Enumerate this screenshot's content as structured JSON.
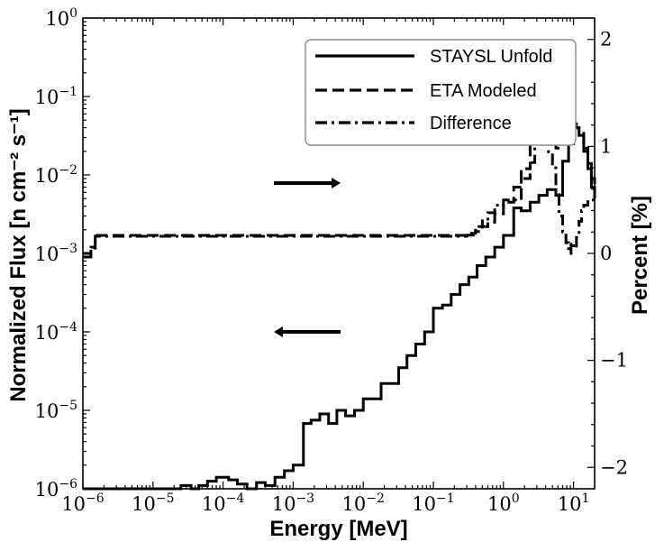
{
  "chart_data": {
    "type": "line",
    "xlabel": "Energy [MeV]",
    "ylabel": "Normalized Flux [n cm⁻² s⁻¹]",
    "ylabel_right": "Percent [%]",
    "xscale": "log",
    "yscale": "log",
    "xlim": [
      1e-06,
      20
    ],
    "ylim": [
      1e-06,
      1
    ],
    "ylim_right": [
      -2.2,
      2.2
    ],
    "x_ticks": [
      {
        "base": "10",
        "exp": "−6",
        "value": 1e-06
      },
      {
        "base": "10",
        "exp": "−5",
        "value": 1e-05
      },
      {
        "base": "10",
        "exp": "−4",
        "value": 0.0001
      },
      {
        "base": "10",
        "exp": "−3",
        "value": 0.001
      },
      {
        "base": "10",
        "exp": "−2",
        "value": 0.01
      },
      {
        "base": "10",
        "exp": "−1",
        "value": 0.1
      },
      {
        "base": "10",
        "exp": "0",
        "value": 1
      },
      {
        "base": "10",
        "exp": "1",
        "value": 10
      }
    ],
    "y_ticks": [
      {
        "base": "10",
        "exp": "−6",
        "value": 1e-06
      },
      {
        "base": "10",
        "exp": "−5",
        "value": 1e-05
      },
      {
        "base": "10",
        "exp": "−4",
        "value": 0.0001
      },
      {
        "base": "10",
        "exp": "−3",
        "value": 0.001
      },
      {
        "base": "10",
        "exp": "−2",
        "value": 0.01
      },
      {
        "base": "10",
        "exp": "−1",
        "value": 0.1
      },
      {
        "base": "10",
        "exp": "0",
        "value": 1
      }
    ],
    "y_right_ticks": [
      {
        "label": "−2",
        "value": -2
      },
      {
        "label": "−1",
        "value": -1
      },
      {
        "label": "0",
        "value": 0
      },
      {
        "label": "1",
        "value": 1
      },
      {
        "label": "2",
        "value": 2
      }
    ],
    "legend_position": "top-right",
    "series": [
      {
        "name": "STAYSL Unfold",
        "style": "solid",
        "axis": "left",
        "x": [
          1e-06,
          2.5e-05,
          3.5e-05,
          4.5e-05,
          6e-05,
          8e-05,
          0.00012,
          0.00016,
          0.00022,
          0.0003,
          0.0004,
          0.00055,
          0.00075,
          0.001,
          0.0014,
          0.0018,
          0.0024,
          0.0032,
          0.0042,
          0.0056,
          0.0075,
          0.01,
          0.0135,
          0.018,
          0.024,
          0.032,
          0.042,
          0.056,
          0.075,
          0.1,
          0.135,
          0.18,
          0.24,
          0.32,
          0.42,
          0.56,
          0.75,
          1,
          1.4,
          1.8,
          2.4,
          3.2,
          4.2,
          5.6,
          7,
          8.5,
          10,
          12,
          14,
          16,
          18,
          20
        ],
        "y": [
          1e-06,
          1.1e-06,
          1e-06,
          1.1e-06,
          1.25e-06,
          1.4e-06,
          1.3e-06,
          1.15e-06,
          1e-06,
          1.2e-06,
          1.1e-06,
          1.4e-06,
          1.7e-06,
          2e-06,
          6.8e-06,
          7.5e-06,
          9e-06,
          6.8e-06,
          1e-05,
          8.5e-06,
          1e-05,
          1.4e-05,
          1.4e-05,
          2.2e-05,
          2.2e-05,
          3.5e-05,
          5e-05,
          7e-05,
          0.0001,
          0.0002,
          0.00022,
          0.0003,
          0.0004,
          0.0005,
          0.0007,
          0.0009,
          0.0012,
          0.0017,
          0.0038,
          0.0035,
          0.0045,
          0.0055,
          0.0065,
          0.0055,
          0.015,
          0.025,
          0.04,
          0.032,
          0.02,
          0.012,
          0.007,
          0.005
        ]
      },
      {
        "name": "ETA Modeled",
        "style": "dashed",
        "axis": "left",
        "x": [
          1e-06,
          1.3e-06,
          1.5e-06,
          0.2,
          0.3,
          0.4,
          0.5,
          0.6,
          0.75,
          1,
          1.4,
          1.8,
          2.4,
          3,
          3.6,
          4.2,
          5,
          5.6,
          6.4,
          7.2,
          8,
          9,
          10,
          11,
          12,
          14,
          16,
          18,
          20
        ],
        "y": [
          0.0009,
          0.0012,
          0.0017,
          0.0017,
          0.0018,
          0.0019,
          0.0022,
          0.0025,
          0.0032,
          0.0045,
          0.007,
          0.012,
          0.025,
          0.032,
          0.03,
          0.028,
          0.026,
          0.022,
          0.025,
          0.03,
          0.036,
          0.042,
          0.045,
          0.04,
          0.034,
          0.022,
          0.014,
          0.009,
          0.006
        ]
      },
      {
        "name": "Difference",
        "style": "dashdot",
        "axis": "right",
        "x": [
          1e-06,
          1.3e-06,
          1.5e-06,
          0.2,
          0.3,
          0.4,
          0.5,
          0.6,
          0.75,
          1,
          1.4,
          1.8,
          2.4,
          2.8,
          3.2,
          3.8,
          4.4,
          5,
          5.6,
          6.2,
          7,
          7.8,
          8.5,
          9.2,
          10,
          11,
          12,
          13,
          14,
          16,
          18,
          20
        ],
        "y": [
          0.0,
          0.05,
          0.16,
          0.16,
          0.17,
          0.25,
          0.32,
          0.38,
          0.45,
          0.5,
          0.5,
          0.7,
          0.85,
          1.07,
          1.02,
          1.07,
          0.95,
          0.8,
          0.55,
          0.35,
          0.2,
          0.1,
          0.0,
          0.1,
          0.05,
          0.15,
          0.3,
          0.4,
          0.45,
          0.5,
          0.5,
          0.5
        ]
      }
    ],
    "annotations": [
      {
        "type": "arrow",
        "direction": "right",
        "meaning": "Difference series uses right axis"
      },
      {
        "type": "arrow",
        "direction": "left",
        "meaning": "Flux series use left axis"
      }
    ]
  }
}
